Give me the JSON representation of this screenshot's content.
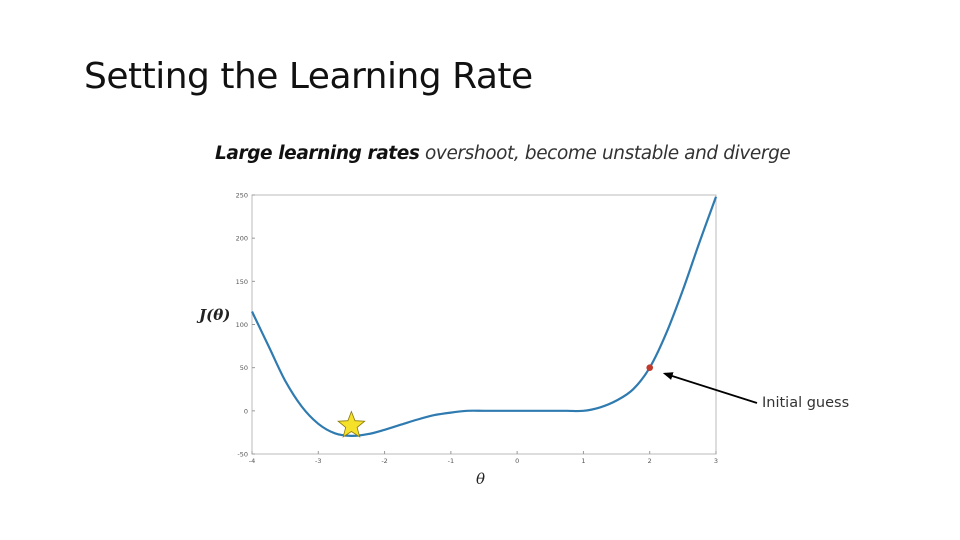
{
  "slide": {
    "title": "Setting the Learning Rate",
    "subtitle_bold": "Large learning rates",
    "subtitle_rest": " overshoot, become unstable and diverge"
  },
  "chart_data": {
    "type": "line",
    "xlabel": "θ",
    "ylabel": "J(θ)",
    "xlim": [
      -4,
      3
    ],
    "ylim": [
      -50,
      250
    ],
    "x_ticks": [
      -4,
      -3,
      -2,
      -1,
      0,
      1,
      2,
      3
    ],
    "y_ticks": [
      -50,
      0,
      50,
      100,
      150,
      200,
      250
    ],
    "grid": false,
    "series": [
      {
        "color": "#2f7bb0",
        "x": [
          -4,
          -3.75,
          -3.5,
          -3.25,
          -3,
          -2.75,
          -2.5,
          -2.25,
          -2,
          -1.75,
          -1.5,
          -1.25,
          -1,
          -0.75,
          -0.5,
          -0.25,
          0,
          0.25,
          0.5,
          0.75,
          1,
          1.25,
          1.5,
          1.75,
          2,
          2.25,
          2.5,
          2.75,
          3
        ],
        "y": [
          115,
          75,
          35,
          5,
          -15,
          -26,
          -29,
          -27,
          -22,
          -16,
          -10,
          -5,
          -2,
          0,
          0,
          0,
          0,
          0,
          0,
          0,
          0,
          4,
          12,
          25,
          50,
          90,
          140,
          195,
          248
        ]
      }
    ],
    "markers": [
      {
        "type": "star",
        "x": -2.5,
        "y": -17,
        "color": "#f5e02a"
      },
      {
        "type": "point",
        "x": 2,
        "y": 50,
        "color": "#c0392b"
      }
    ],
    "annotations": [
      {
        "text": "Initial guess",
        "target_x": 2,
        "target_y": 50
      }
    ]
  }
}
